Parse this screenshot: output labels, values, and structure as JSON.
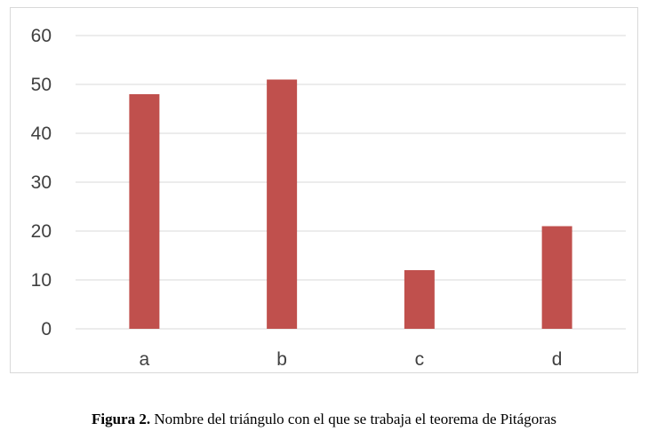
{
  "chart_data": {
    "type": "bar",
    "categories": [
      "a",
      "b",
      "c",
      "d"
    ],
    "values": [
      48,
      51,
      12,
      21
    ],
    "ylim": [
      0,
      60
    ],
    "yticks": [
      0,
      10,
      20,
      30,
      40,
      50,
      60
    ],
    "grid": true,
    "bar_color": "#c0504d",
    "title": "",
    "xlabel": "",
    "ylabel": ""
  },
  "caption": {
    "label": "Figura 2.",
    "text": " Nombre del triángulo con el que se trabaja el teorema de Pitágoras"
  }
}
